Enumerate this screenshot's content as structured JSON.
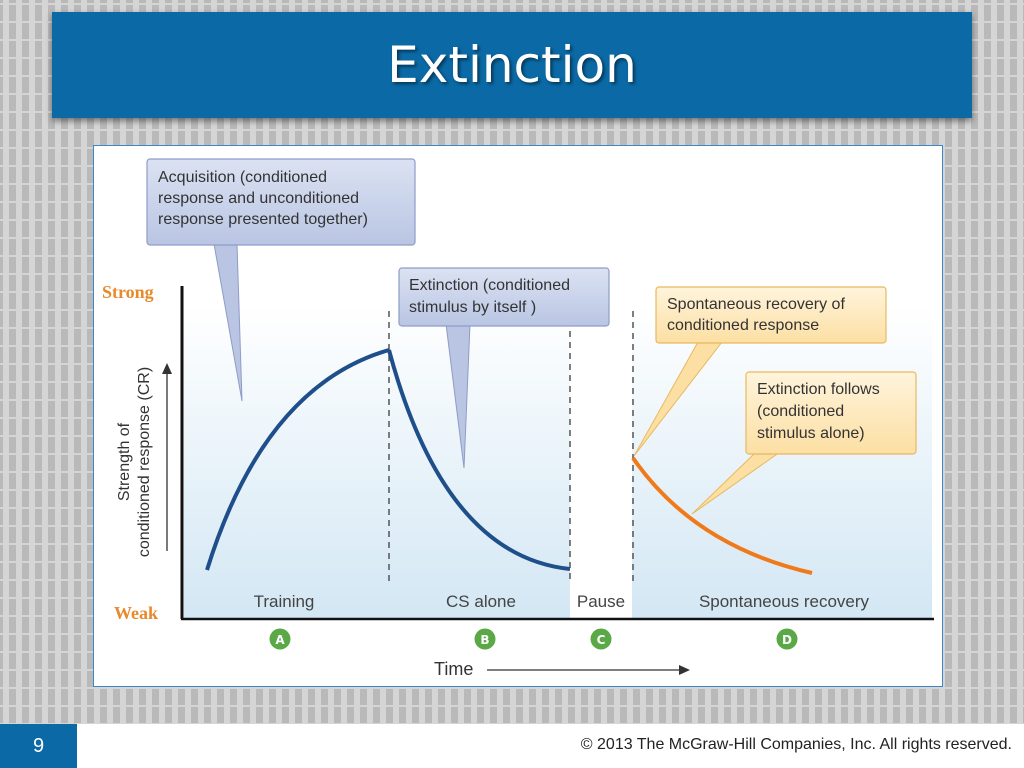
{
  "slide": {
    "title": "Extinction",
    "page_number": "9",
    "copyright": "© 2013 The McGraw-Hill Companies, Inc. All rights reserved."
  },
  "figure": {
    "y_axis": {
      "label_line1": "Strength of",
      "label_line2": "conditioned response (CR)",
      "top": "Strong",
      "bottom": "Weak"
    },
    "x_axis": {
      "label": "Time"
    },
    "phases": [
      {
        "letter": "A",
        "label": "Training"
      },
      {
        "letter": "B",
        "label": "CS alone"
      },
      {
        "letter": "C",
        "label": "Pause"
      },
      {
        "letter": "D",
        "label": "Spontaneous recovery"
      }
    ],
    "callouts": {
      "acquisition": {
        "line1": "Acquisition (conditioned",
        "line2": "response and unconditioned",
        "line3": "response presented together)"
      },
      "extinction": {
        "line1": "Extinction (conditioned",
        "line2": "stimulus by itself )"
      },
      "spontaneous": {
        "line1": "Spontaneous recovery of",
        "line2": "conditioned response"
      },
      "extinction_follows": {
        "line1": "Extinction follows",
        "line2": "(conditioned",
        "line3": "stimulus alone)"
      }
    },
    "colors": {
      "curve_blue": "#1f4f8a",
      "curve_orange": "#f07a1a",
      "phase_circle_green": "#5aa846",
      "axis_label_orange": "#e8892b",
      "callout_blue": "#c5cfe8",
      "callout_orange": "#fde7b8"
    }
  }
}
